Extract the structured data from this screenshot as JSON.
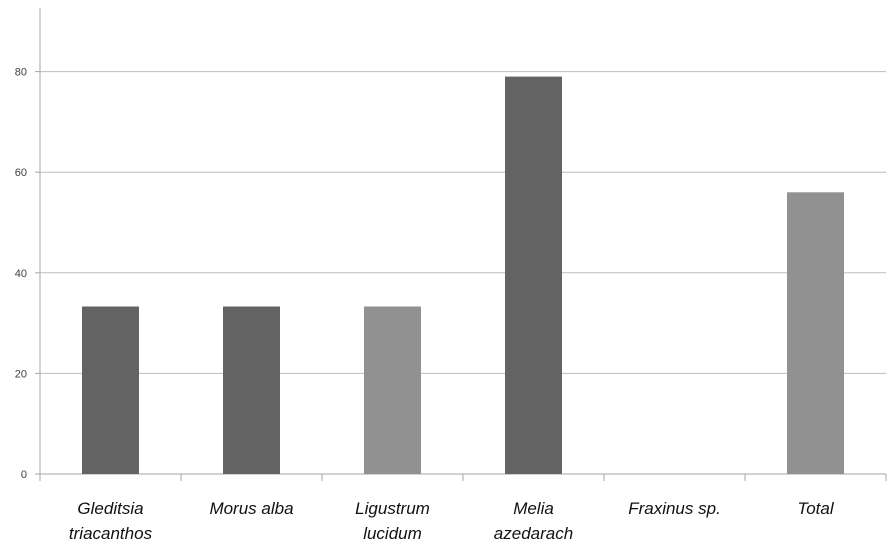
{
  "chart_data": {
    "type": "bar",
    "categories": [
      [
        "Gleditsia",
        "triacanthos"
      ],
      [
        "Morus alba"
      ],
      [
        "Ligustrum",
        "lucidum"
      ],
      [
        "Melia",
        "azedarach"
      ],
      [
        "Fraxinus sp."
      ],
      [
        "Total"
      ]
    ],
    "values": [
      33.3,
      33.3,
      33.3,
      79,
      0,
      56
    ],
    "bar_colors": [
      "#636363",
      "#636363",
      "#919191",
      "#636363",
      "#636363",
      "#919191"
    ],
    "ylim": [
      0,
      90
    ],
    "yticks": [
      "0",
      "20",
      "40",
      "60",
      "80"
    ],
    "ytick_values": [
      0,
      20,
      40,
      60,
      80
    ],
    "grid": true,
    "gridline_color": "#bdbdbd",
    "axis_color": "#a6a6a6"
  }
}
